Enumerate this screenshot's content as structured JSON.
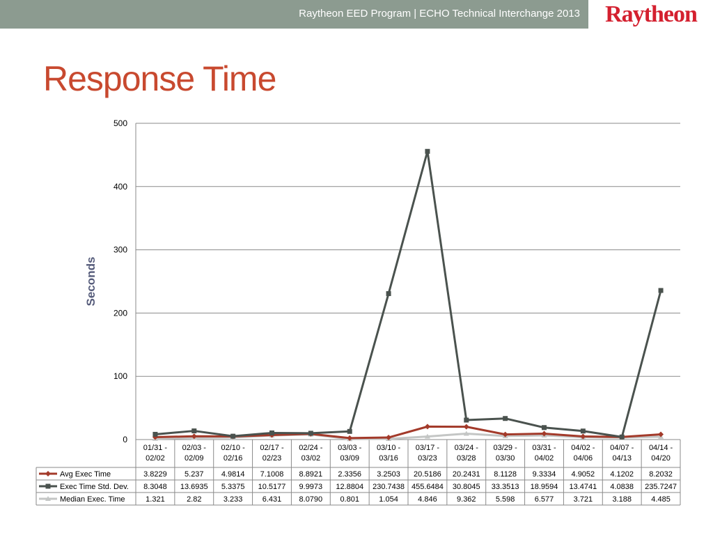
{
  "header": {
    "text": "Raytheon EED Program  |  ECHO Technical Interchange 2013",
    "logo_text": "Raytheon",
    "colors": {
      "bar": "#8c9b90",
      "logo": "#d4202f"
    }
  },
  "slide": {
    "title": "Response Time",
    "title_color": "#c8492f"
  },
  "chart_data": {
    "type": "line",
    "ylabel": "Seconds",
    "ylim": [
      0,
      500
    ],
    "yticks": [
      0,
      100,
      200,
      300,
      400,
      500
    ],
    "grid": true,
    "legend": "table-left",
    "categories": [
      [
        "01/31 -",
        "02/02"
      ],
      [
        "02/03 -",
        "02/09"
      ],
      [
        "02/10 -",
        "02/16"
      ],
      [
        "02/17 -",
        "02/23"
      ],
      [
        "02/24 -",
        "03/02"
      ],
      [
        "03/03 -",
        "03/09"
      ],
      [
        "03/10 -",
        "03/16"
      ],
      [
        "03/17 -",
        "03/23"
      ],
      [
        "03/24 -",
        "03/28"
      ],
      [
        "03/29 -",
        "03/30"
      ],
      [
        "03/31 -",
        "04/02"
      ],
      [
        "04/02 -",
        "04/06"
      ],
      [
        "04/07 -",
        "04/13"
      ],
      [
        "04/14 -",
        "04/20"
      ]
    ],
    "series": [
      {
        "name": "Avg Exec Time",
        "color": "#a33a2a",
        "marker": "diamond",
        "values": [
          3.8229,
          5.237,
          4.9814,
          7.1008,
          8.8921,
          2.3356,
          3.2503,
          20.5186,
          20.2431,
          8.1128,
          9.3334,
          4.9052,
          4.1202,
          8.2032
        ],
        "labels": [
          "3.8229",
          "5.237",
          "4.9814",
          "7.1008",
          "8.8921",
          "2.3356",
          "3.2503",
          "20.5186",
          "20.2431",
          "8.1128",
          "9.3334",
          "4.9052",
          "4.1202",
          "8.2032"
        ]
      },
      {
        "name": "Exec Time Std. Dev.",
        "color": "#4a524e",
        "marker": "square",
        "values": [
          8.3048,
          13.6935,
          5.3375,
          10.5177,
          9.9973,
          12.8804,
          230.7438,
          455.6484,
          30.8045,
          33.3513,
          18.9594,
          13.4741,
          4.0838,
          235.7247
        ],
        "labels": [
          "8.3048",
          "13.6935",
          "5.3375",
          "10.5177",
          "9.9973",
          "12.8804",
          "230.7438",
          "455.6484",
          "30.8045",
          "33.3513",
          "18.9594",
          "13.4741",
          "4.0838",
          "235.7247"
        ]
      },
      {
        "name": "Median Exec. Time",
        "color": "#c4c6c5",
        "marker": "triangle",
        "values": [
          1.321,
          2.82,
          3.233,
          6.431,
          8.079,
          0.801,
          1.054,
          4.846,
          9.362,
          5.598,
          6.577,
          3.721,
          3.188,
          4.485
        ],
        "labels": [
          "1.321",
          "2.82",
          "3.233",
          "6.431",
          "8.0790",
          "0.801",
          "1.054",
          "4.846",
          "9.362",
          "5.598",
          "6.577",
          "3.721",
          "3.188",
          "4.485"
        ]
      }
    ]
  }
}
